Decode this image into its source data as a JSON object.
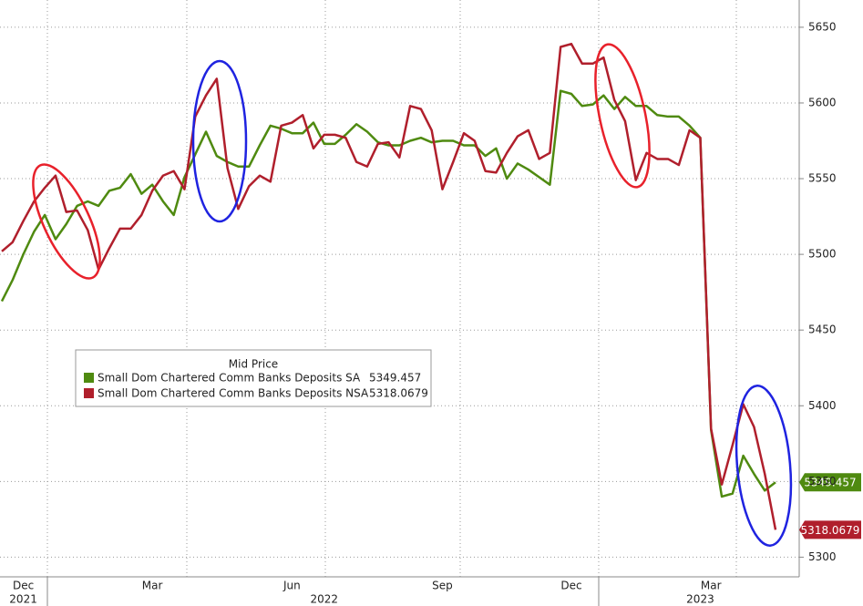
{
  "chart_data": {
    "type": "line",
    "legend_title": "Mid Price",
    "categories": [
      null,
      null,
      "Dec",
      null,
      null,
      null,
      null,
      null,
      null,
      null,
      null,
      null,
      null,
      null,
      "Mar",
      null,
      null,
      null,
      null,
      null,
      null,
      null,
      null,
      null,
      null,
      null,
      null,
      "Jun",
      null,
      null,
      null,
      null,
      null,
      null,
      null,
      null,
      null,
      null,
      null,
      null,
      null,
      "Sep",
      null,
      null,
      null,
      null,
      null,
      null,
      null,
      null,
      null,
      null,
      null,
      "Dec",
      null,
      null,
      null,
      null,
      null,
      null,
      null,
      null,
      null,
      null,
      null,
      null,
      "Mar",
      null,
      null,
      null,
      null,
      null,
      null
    ],
    "years": [
      null,
      null,
      "2021",
      null,
      null,
      null,
      null,
      null,
      null,
      null,
      null,
      null,
      null,
      null,
      null,
      null,
      null,
      null,
      null,
      null,
      null,
      null,
      null,
      null,
      null,
      null,
      null,
      null,
      null,
      null,
      "2022",
      null,
      null,
      null,
      null,
      null,
      null,
      null,
      null,
      null,
      null,
      null,
      null,
      null,
      null,
      null,
      null,
      null,
      null,
      null,
      null,
      null,
      null,
      null,
      null,
      null,
      null,
      null,
      null,
      null,
      null,
      null,
      null,
      null,
      null,
      "2023",
      null,
      null,
      null,
      null,
      null,
      null,
      null
    ],
    "series": [
      {
        "name": "Small Dom Chartered Comm Banks Deposits SA",
        "color": "#4f8a10",
        "values": [
          5469,
          5483,
          5500,
          5515,
          5526,
          5510,
          5520,
          5532,
          5535,
          5532,
          5542,
          5544,
          5553,
          5540,
          5546,
          5535,
          5526,
          5551,
          5566,
          5581,
          5565,
          5561,
          5558,
          5558,
          5572,
          5585,
          5583,
          5580,
          5580,
          5587,
          5573,
          5573,
          5579,
          5586,
          5581,
          5574,
          5572,
          5572,
          5575,
          5577,
          5574,
          5575,
          5575,
          5572,
          5572,
          5565,
          5570,
          5550,
          5560,
          5556,
          5551,
          5546,
          5608,
          5606,
          5598,
          5599,
          5605,
          5596,
          5604,
          5598,
          5598,
          5592,
          5591,
          5591,
          5585,
          5577,
          5384,
          5340,
          5342,
          5367,
          5355,
          5344,
          5349.457
        ]
      },
      {
        "name": "Small Dom Chartered Comm Banks Deposits NSA",
        "color": "#b01f2c",
        "values": [
          5502,
          5508,
          5522,
          5535,
          5544,
          5552,
          5528,
          5529,
          5516,
          5490,
          5504,
          5517,
          5517,
          5526,
          5542,
          5552,
          5555,
          5543,
          5591,
          5605,
          5616,
          5557,
          5530,
          5545,
          5552,
          5548,
          5585,
          5587,
          5592,
          5570,
          5579,
          5579,
          5577,
          5561,
          5558,
          5573,
          5574,
          5564,
          5598,
          5596,
          5582,
          5543,
          5561,
          5580,
          5575,
          5555,
          5554,
          5567,
          5578,
          5582,
          5563,
          5567,
          5637,
          5639,
          5626,
          5626,
          5630,
          5602,
          5588,
          5549,
          5567,
          5563,
          5563,
          5559,
          5582,
          5577,
          5385,
          5348,
          5374,
          5401,
          5386,
          5355,
          5318.0679
        ]
      }
    ],
    "ylim": [
      5287,
      5668
    ],
    "yticks": [
      5300,
      5350,
      5400,
      5450,
      5500,
      5550,
      5600,
      5650
    ],
    "grid": true
  }
}
